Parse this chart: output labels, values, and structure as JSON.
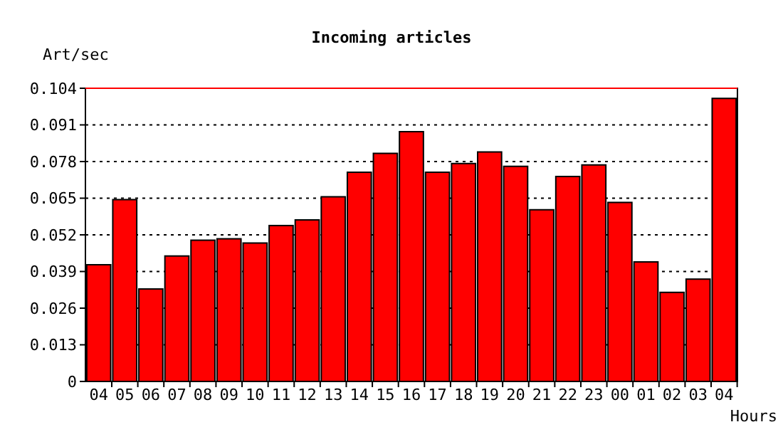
{
  "chart_data": {
    "type": "bar",
    "title": "Incoming articles",
    "ylabel": "Art/sec",
    "xlabel": "Hours",
    "categories": [
      "04",
      "05",
      "06",
      "07",
      "08",
      "09",
      "10",
      "11",
      "12",
      "13",
      "14",
      "15",
      "16",
      "17",
      "18",
      "19",
      "20",
      "21",
      "22",
      "23",
      "00",
      "01",
      "02",
      "03",
      "04"
    ],
    "values": [
      0.0414,
      0.0645,
      0.0328,
      0.0445,
      0.0501,
      0.0506,
      0.0491,
      0.0553,
      0.0573,
      0.0655,
      0.0742,
      0.0809,
      0.0886,
      0.0742,
      0.0773,
      0.0814,
      0.0763,
      0.0609,
      0.0727,
      0.0768,
      0.0635,
      0.0424,
      0.0316,
      0.0363,
      0.1004
    ],
    "color": "#ff0000",
    "ylim": [
      0,
      0.104
    ],
    "yticks": [
      0,
      0.013,
      0.026,
      0.039,
      0.052,
      0.065,
      0.078,
      0.091,
      0.104
    ],
    "grid": "y",
    "ref_lines": [
      {
        "axis": "y",
        "value": 0.104,
        "color": "#ff0000"
      }
    ]
  }
}
